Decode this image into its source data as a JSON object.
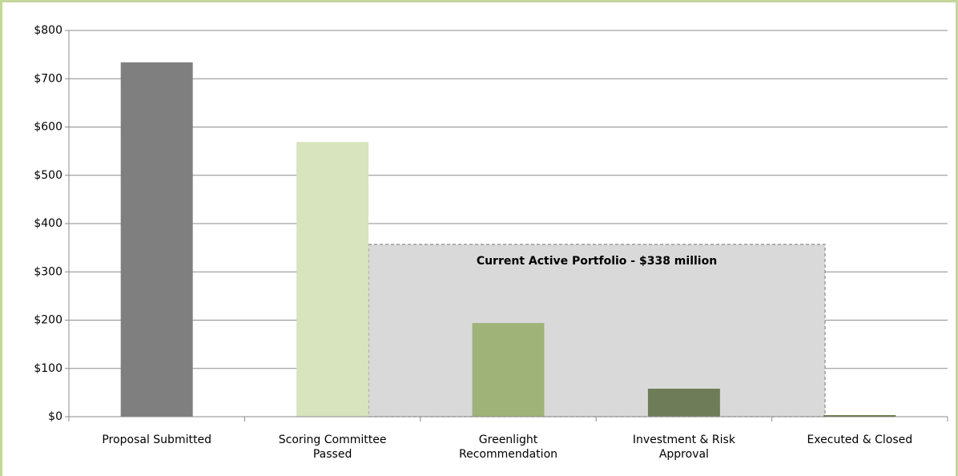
{
  "chart_data": {
    "type": "bar",
    "annotation": "Current Active Portfolio  - $338 million",
    "categories": [
      "Proposal Submitted",
      "Scoring Committee Passed",
      "Greenlight Recommendation",
      "Investment & Risk Approval",
      "Executed & Closed"
    ],
    "values": [
      734,
      569,
      194,
      58,
      3
    ],
    "colors": [
      "#7f7f7f",
      "#d7e4bd",
      "#9fb379",
      "#6e7d57",
      "#4f6228"
    ],
    "ylim": [
      0,
      800
    ],
    "yticks": [
      {
        "value": 0,
        "label": "$0"
      },
      {
        "value": 100,
        "label": "$100"
      },
      {
        "value": 200,
        "label": "$200"
      },
      {
        "value": 300,
        "label": "$300"
      },
      {
        "value": 400,
        "label": "$400"
      },
      {
        "value": 500,
        "label": "$500"
      },
      {
        "value": 600,
        "label": "$600"
      },
      {
        "value": 700,
        "label": "$700"
      },
      {
        "value": 800,
        "label": "$800"
      }
    ],
    "grid": true
  }
}
